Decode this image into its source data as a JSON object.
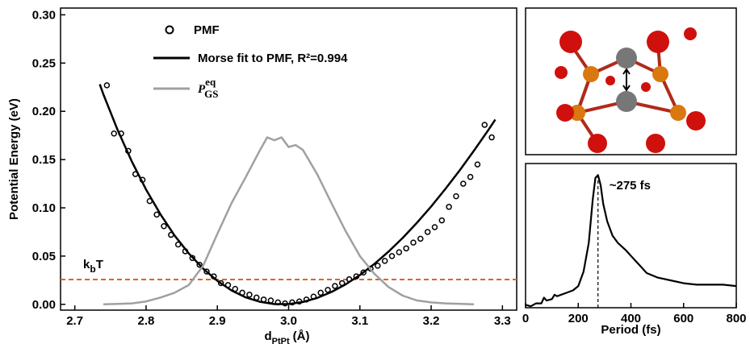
{
  "chart_data": [
    {
      "type": "line",
      "xlabel": "d",
      "xlabel_sub": "PtPt",
      "xlabel_tail": "(Å)",
      "ylabel": "Potential Energy (eV)",
      "xlim": [
        2.68,
        3.32
      ],
      "ylim": [
        -0.006,
        0.307
      ],
      "xticks": [
        2.7,
        2.8,
        2.9,
        {
          "value": 3,
          "label": "3.0"
        },
        3.1,
        3.2,
        3.3
      ],
      "yticks": [
        {
          "value": 0,
          "label": "0.00"
        },
        {
          "value": 0.05,
          "label": "0.05"
        },
        {
          "value": 0.1,
          "label": "0.10"
        },
        {
          "value": 0.15,
          "label": "0.15"
        },
        {
          "value": 0.2,
          "label": "0.20"
        },
        {
          "value": 0.25,
          "label": "0.25"
        },
        {
          "value": 0.3,
          "label": "0.30"
        }
      ],
      "series": [
        {
          "name": "PMF",
          "type": "scatter",
          "color": "#000000",
          "x": [
            2.745,
            2.755,
            2.765,
            2.775,
            2.785,
            2.795,
            2.805,
            2.815,
            2.825,
            2.835,
            2.845,
            2.855,
            2.865,
            2.875,
            2.885,
            2.895,
            2.905,
            2.915,
            2.925,
            2.935,
            2.945,
            2.955,
            2.965,
            2.975,
            2.985,
            2.995,
            3.005,
            3.015,
            3.025,
            3.035,
            3.045,
            3.055,
            3.065,
            3.075,
            3.085,
            3.095,
            3.105,
            3.115,
            3.125,
            3.135,
            3.145,
            3.155,
            3.165,
            3.175,
            3.185,
            3.195,
            3.205,
            3.215,
            3.225,
            3.235,
            3.245,
            3.255,
            3.265,
            3.275,
            3.285
          ],
          "values": [
            0.227,
            0.177,
            0.177,
            0.159,
            0.135,
            0.129,
            0.107,
            0.093,
            0.081,
            0.072,
            0.062,
            0.055,
            0.048,
            0.041,
            0.034,
            0.029,
            0.022,
            0.02,
            0.016,
            0.012,
            0.01,
            0.007,
            0.005,
            0.004,
            0.002,
            0.001,
            0.002,
            0.003,
            0.005,
            0.008,
            0.012,
            0.015,
            0.019,
            0.022,
            0.026,
            0.029,
            0.033,
            0.037,
            0.04,
            0.045,
            0.05,
            0.054,
            0.058,
            0.064,
            0.068,
            0.075,
            0.08,
            0.087,
            0.101,
            0.112,
            0.125,
            0.132,
            0.145,
            0.186,
            0.173
          ]
        },
        {
          "name": "Morse fit to PMF, R²=0.994",
          "type": "line",
          "color": "#000000",
          "x": [
            2.735,
            2.74,
            2.76,
            2.78,
            2.8,
            2.82,
            2.84,
            2.86,
            2.88,
            2.9,
            2.92,
            2.94,
            2.96,
            2.98,
            3.0,
            3.02,
            3.04,
            3.06,
            3.08,
            3.1,
            3.12,
            3.14,
            3.16,
            3.18,
            3.2,
            3.22,
            3.24,
            3.26,
            3.28,
            3.29
          ],
          "values": [
            0.228,
            0.2177,
            0.1809,
            0.148,
            0.119,
            0.0935,
            0.0714,
            0.0527,
            0.0371,
            0.0244,
            0.0144,
            0.0072,
            0.0026,
            0.0003,
            0.0003,
            0.0024,
            0.0066,
            0.0128,
            0.0207,
            0.0304,
            0.0417,
            0.0545,
            0.0688,
            0.0845,
            0.1014,
            0.1196,
            0.1388,
            0.1592,
            0.1804,
            0.1915
          ]
        },
        {
          "name": "P",
          "subscript": "GS",
          "superscript": "eq",
          "type": "line",
          "color": "#a0a0a0",
          "x": [
            2.74,
            2.76,
            2.78,
            2.8,
            2.82,
            2.84,
            2.86,
            2.88,
            2.9,
            2.92,
            2.94,
            2.96,
            2.97,
            2.98,
            2.99,
            3.0,
            3.01,
            3.02,
            3.04,
            3.06,
            3.08,
            3.1,
            3.12,
            3.14,
            3.16,
            3.18,
            3.2,
            3.22,
            3.26
          ],
          "values": [
            0,
            0.0005,
            0.001,
            0.003,
            0.007,
            0.012,
            0.02,
            0.04,
            0.073,
            0.105,
            0.132,
            0.16,
            0.173,
            0.17,
            0.173,
            0.163,
            0.165,
            0.16,
            0.135,
            0.105,
            0.076,
            0.05,
            0.032,
            0.018,
            0.009,
            0.004,
            0.002,
            0.001,
            0
          ]
        }
      ],
      "hlines": [
        {
          "label": "k",
          "label_sub": "b",
          "label_tail": "T",
          "y": 0.0257,
          "color": "#e0622a"
        }
      ]
    },
    {
      "type": "line",
      "xlabel": "Period (fs)",
      "xlim": [
        0,
        800
      ],
      "ylim": [
        0,
        1
      ],
      "xticks": [
        0,
        200,
        400,
        600,
        800
      ],
      "series": [
        {
          "type": "line",
          "color": "#000000",
          "x": [
            0,
            20,
            40,
            60,
            70,
            80,
            100,
            110,
            120,
            150,
            180,
            200,
            220,
            240,
            255,
            265,
            275,
            285,
            295,
            310,
            330,
            350,
            380,
            400,
            430,
            460,
            500,
            550,
            600,
            650,
            700,
            750,
            800
          ],
          "values": [
            0.02,
            0.01,
            0.03,
            0.03,
            0.07,
            0.05,
            0.06,
            0.09,
            0.08,
            0.1,
            0.12,
            0.15,
            0.25,
            0.45,
            0.75,
            0.9,
            0.92,
            0.85,
            0.72,
            0.6,
            0.5,
            0.45,
            0.4,
            0.36,
            0.3,
            0.24,
            0.21,
            0.19,
            0.17,
            0.16,
            0.16,
            0.16,
            0.15
          ]
        }
      ],
      "vlines": [
        {
          "x": 275,
          "label": "~275 fs"
        }
      ]
    }
  ]
}
